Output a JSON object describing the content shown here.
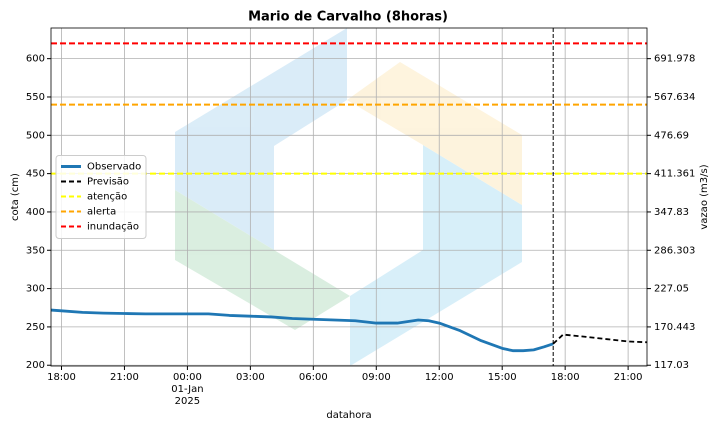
{
  "chart_data": {
    "type": "line",
    "title": "Mario de Carvalho (8horas)",
    "xlabel": "datahora",
    "ylabel": "cota (cm)",
    "y2label": "vazao (m3/s)",
    "xlim": [
      -6.5,
      21.9
    ],
    "xticks": [
      {
        "value": -6,
        "label": "18:00"
      },
      {
        "value": -3,
        "label": "21:00"
      },
      {
        "value": 0,
        "label": "00:00\n01-Jan\n2025"
      },
      {
        "value": 3,
        "label": "03:00"
      },
      {
        "value": 6,
        "label": "06:00"
      },
      {
        "value": 9,
        "label": "09:00"
      },
      {
        "value": 12,
        "label": "12:00"
      },
      {
        "value": 15,
        "label": "15:00"
      },
      {
        "value": 18,
        "label": "18:00"
      },
      {
        "value": 21,
        "label": "21:00"
      }
    ],
    "ylim": [
      199,
      640
    ],
    "yticks": [
      200,
      250,
      300,
      350,
      400,
      450,
      500,
      550,
      600
    ],
    "y2ticks": [
      117.03,
      170.443,
      227.05,
      286.303,
      347.83,
      411.361,
      476.69,
      567.634,
      691.978
    ],
    "grid": true,
    "legend": "center left",
    "series": [
      {
        "name": "Observado",
        "color": "#1f77b4",
        "style": "solid",
        "x": [
          -6.5,
          -6,
          -5,
          -4,
          -3,
          -2,
          -1,
          0,
          1,
          2,
          3,
          4,
          5,
          6,
          7,
          8,
          9,
          10,
          11,
          11.5,
          12,
          13,
          14,
          15,
          15.5,
          16,
          16.5,
          17,
          17.43
        ],
        "values": [
          272,
          271,
          269,
          268,
          267.5,
          267,
          267,
          267,
          267,
          265,
          264,
          263,
          261,
          260,
          259,
          258,
          255,
          255,
          259,
          258,
          255,
          245,
          232,
          222,
          219,
          219,
          220,
          224,
          228
        ]
      },
      {
        "name": "Previsão",
        "color": "#000000",
        "style": "dashed",
        "x": [
          17.43,
          17.9,
          19,
          20,
          21,
          21.9
        ],
        "values": [
          228,
          240,
          237,
          234,
          231,
          230
        ]
      }
    ],
    "thresholds": [
      {
        "name": "atenção",
        "color": "#ffff00",
        "value": 450
      },
      {
        "name": "alerta",
        "color": "#ffa500",
        "value": 540
      },
      {
        "name": "inundação",
        "color": "#ff0000",
        "value": 620
      }
    ]
  }
}
